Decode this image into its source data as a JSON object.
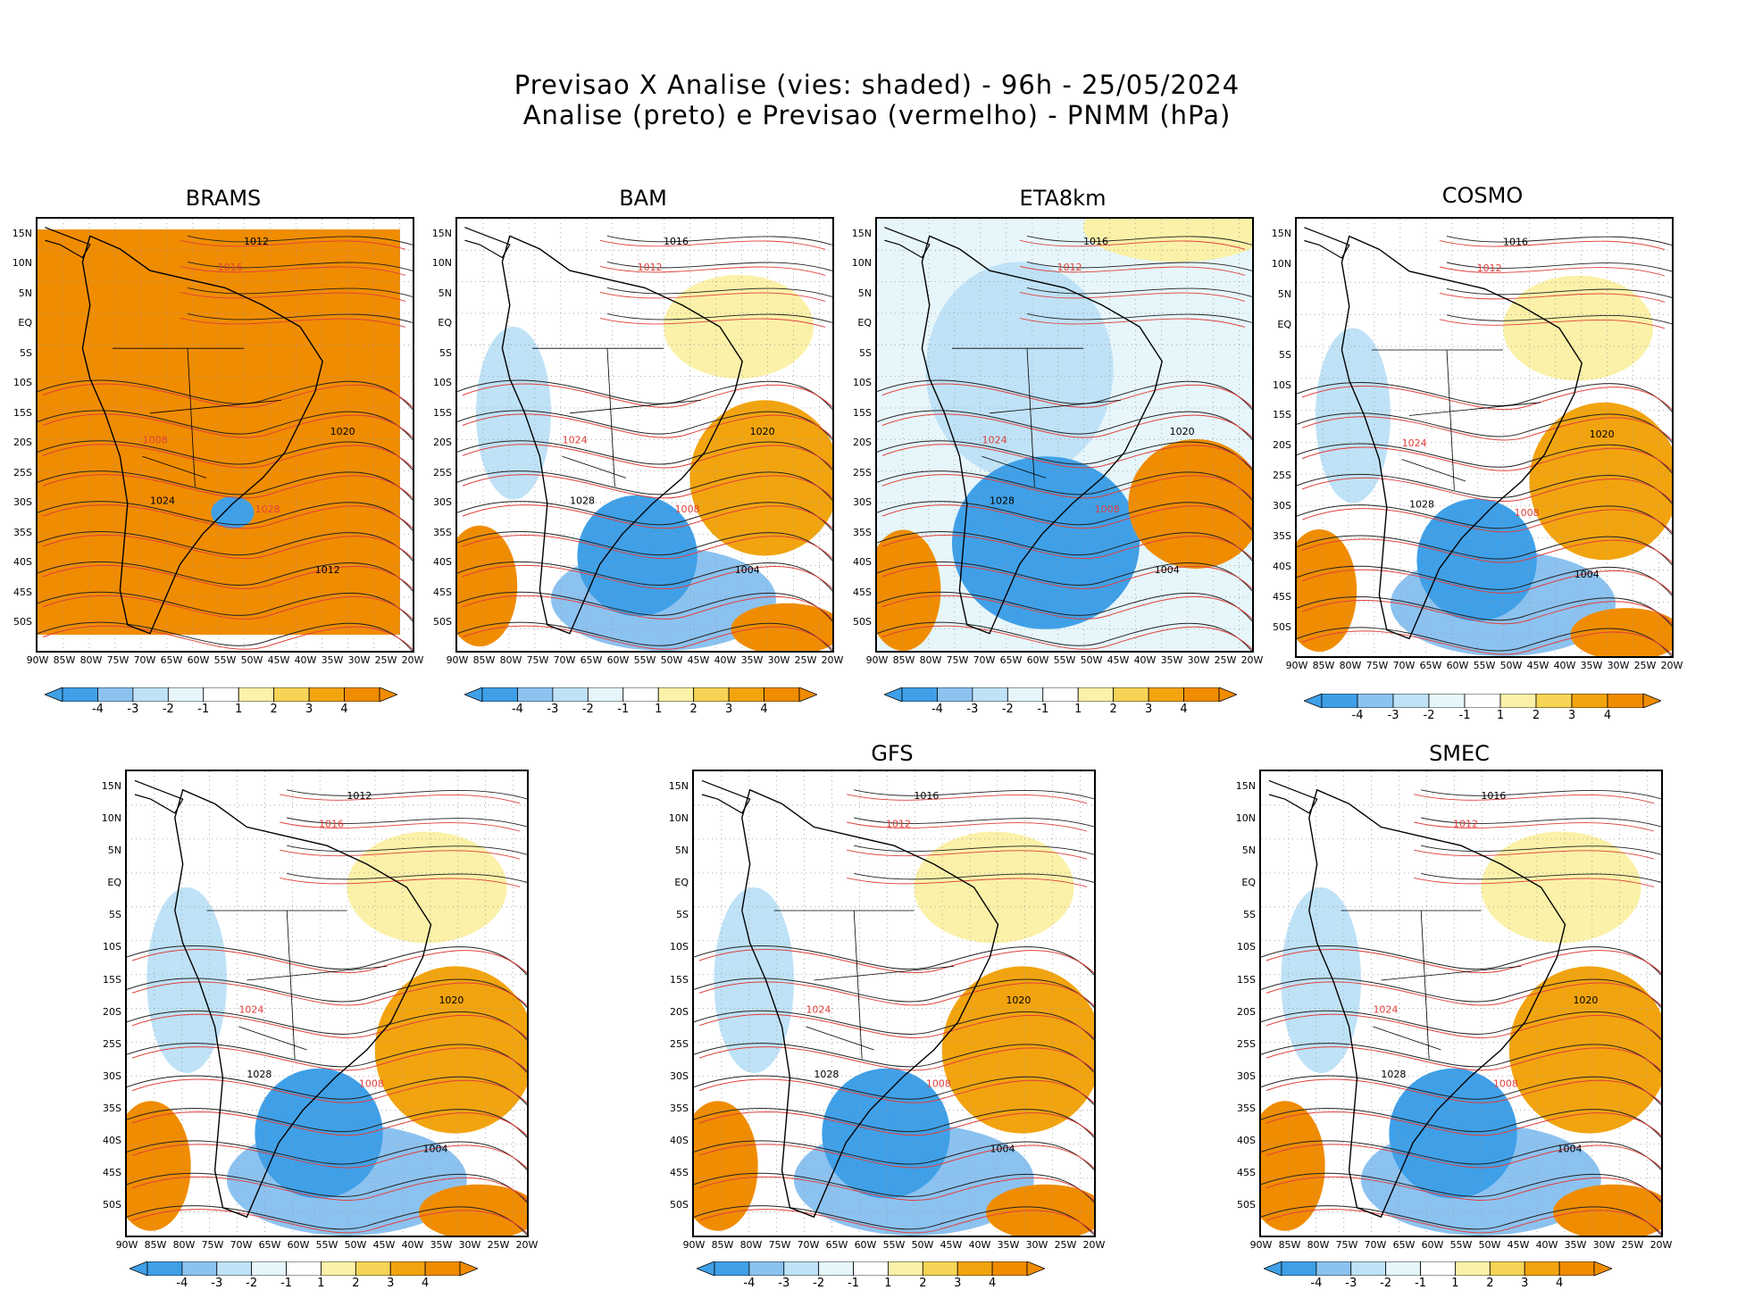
{
  "header": {
    "line1": "Previsao X Analise (vies: shaded) - 96h - 25/05/2024",
    "line2": "Analise (preto) e Previsao (vermelho) - PNMM (hPa)"
  },
  "axes": {
    "lat_labels": [
      "15N",
      "10N",
      "5N",
      "EQ",
      "5S",
      "10S",
      "15S",
      "20S",
      "25S",
      "30S",
      "35S",
      "40S",
      "45S",
      "50S"
    ],
    "lon_labels": [
      "90W",
      "85W",
      "80W",
      "75W",
      "70W",
      "65W",
      "60W",
      "55W",
      "50W",
      "45W",
      "40W",
      "35W",
      "30W",
      "25W",
      "20W"
    ]
  },
  "colorbar": {
    "labels": [
      "-4",
      "-3",
      "-2",
      "-1",
      "1",
      "2",
      "3",
      "4"
    ],
    "colors": [
      "#3fa0e8",
      "#8cc2f0",
      "#bfe2f7",
      "#e6f6fb",
      "#ffffff",
      "#fbf1a8",
      "#f6d456",
      "#f2a40f",
      "#f08c00"
    ]
  },
  "panels": [
    {
      "title": "BRAMS",
      "bias": "orange",
      "isobar_labels": [
        "1012",
        "1016",
        "1020",
        "1008",
        "1024",
        "1028",
        "1012"
      ]
    },
    {
      "title": "BAM",
      "bias": "mixed",
      "isobar_labels": [
        "1016",
        "1012",
        "1020",
        "1024",
        "1028",
        "1008",
        "1004"
      ]
    },
    {
      "title": "ETA8km",
      "bias": "blue",
      "isobar_labels": [
        "1016",
        "1012",
        "1020",
        "1024",
        "1028",
        "1008",
        "1004"
      ]
    },
    {
      "title": "COSMO",
      "bias": "mixed",
      "isobar_labels": [
        "1016",
        "1012",
        "1020",
        "1024",
        "1028",
        "1008",
        "1004"
      ]
    },
    {
      "title": "",
      "bias": "mixed",
      "isobar_labels": [
        "1012",
        "1016",
        "1020",
        "1024",
        "1028",
        "1008",
        "1004"
      ]
    },
    {
      "title": "GFS",
      "bias": "mixed",
      "isobar_labels": [
        "1016",
        "1012",
        "1020",
        "1024",
        "1028",
        "1008",
        "1004"
      ]
    },
    {
      "title": "SMEC",
      "bias": "mixed",
      "isobar_labels": [
        "1016",
        "1012",
        "1020",
        "1024",
        "1028",
        "1008",
        "1004"
      ]
    }
  ]
}
